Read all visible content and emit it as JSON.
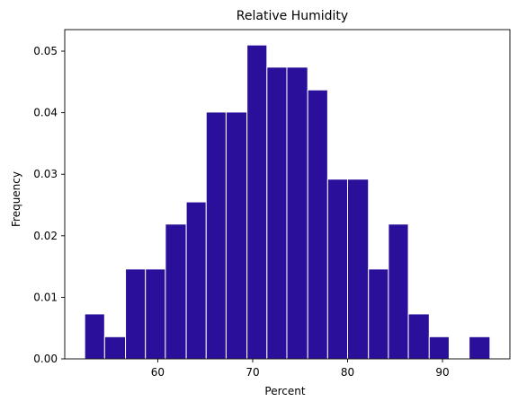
{
  "chart_data": {
    "type": "bar",
    "title": "Relative Humidity",
    "xlabel": "Percent",
    "ylabel": "Frequency",
    "bar_color": "#2a0f9a",
    "bar_edge_color": "#ffffff",
    "xlim": [
      50.2,
      97.1
    ],
    "ylim": [
      0,
      0.0535
    ],
    "xticks": [
      60,
      70,
      80,
      90
    ],
    "yticks": [
      0.0,
      0.01,
      0.02,
      0.03,
      0.04,
      0.05
    ],
    "ytick_labels": [
      "0.00",
      "0.01",
      "0.02",
      "0.03",
      "0.04",
      "0.05"
    ],
    "bins": [
      {
        "x0": 52.3,
        "x1": 54.4,
        "value": 0.0073
      },
      {
        "x0": 54.4,
        "x1": 56.6,
        "value": 0.0036
      },
      {
        "x0": 56.6,
        "x1": 58.7,
        "value": 0.0146
      },
      {
        "x0": 58.7,
        "x1": 60.8,
        "value": 0.0146
      },
      {
        "x0": 60.8,
        "x1": 63.0,
        "value": 0.0219
      },
      {
        "x0": 63.0,
        "x1": 65.1,
        "value": 0.0255
      },
      {
        "x0": 65.1,
        "x1": 67.2,
        "value": 0.0401
      },
      {
        "x0": 67.2,
        "x1": 69.4,
        "value": 0.0401
      },
      {
        "x0": 69.4,
        "x1": 71.5,
        "value": 0.051
      },
      {
        "x0": 71.5,
        "x1": 73.6,
        "value": 0.0474
      },
      {
        "x0": 73.6,
        "x1": 75.8,
        "value": 0.0474
      },
      {
        "x0": 75.8,
        "x1": 77.9,
        "value": 0.0437
      },
      {
        "x0": 77.9,
        "x1": 80.0,
        "value": 0.0292
      },
      {
        "x0": 80.0,
        "x1": 82.2,
        "value": 0.0292
      },
      {
        "x0": 82.2,
        "x1": 84.3,
        "value": 0.0146
      },
      {
        "x0": 84.3,
        "x1": 86.4,
        "value": 0.0219
      },
      {
        "x0": 86.4,
        "x1": 88.6,
        "value": 0.0073
      },
      {
        "x0": 88.6,
        "x1": 90.7,
        "value": 0.0036
      },
      {
        "x0": 90.7,
        "x1": 92.8,
        "value": 0.0
      },
      {
        "x0": 92.8,
        "x1": 95.0,
        "value": 0.0036
      }
    ]
  }
}
